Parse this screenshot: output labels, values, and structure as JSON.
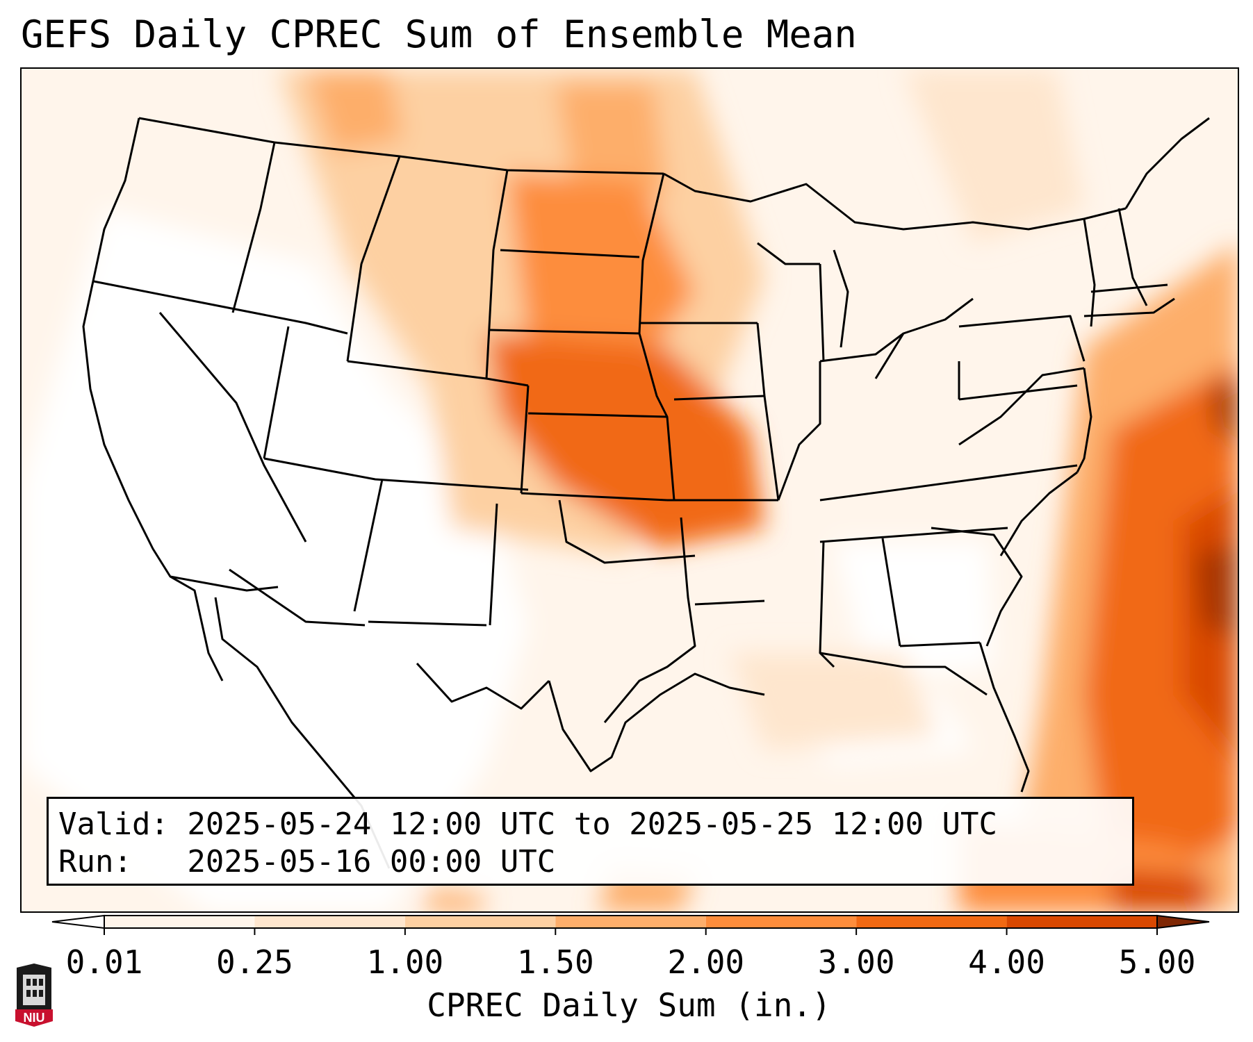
{
  "title": "GEFS Daily CPREC Sum of Ensemble Mean",
  "info": {
    "valid": "Valid: 2025-05-24 12:00 UTC to 2025-05-25 12:00 UTC",
    "run": "Run:   2025-05-16 00:00 UTC"
  },
  "colorbar": {
    "label": "CPREC Daily Sum (in.)",
    "ticks": [
      "0.01",
      "0.25",
      "1.00",
      "1.50",
      "2.00",
      "3.00",
      "4.00",
      "5.00"
    ],
    "colors": [
      "#fff5eb",
      "#fee6ce",
      "#fdd0a2",
      "#fdae6b",
      "#fd8d3c",
      "#f16913",
      "#d94801",
      "#a63603"
    ],
    "extend_low_color": "#ffffff",
    "extend_high_color": "#7f2704"
  },
  "logo": {
    "text": "NIU",
    "icon": "university-tower-icon"
  }
}
